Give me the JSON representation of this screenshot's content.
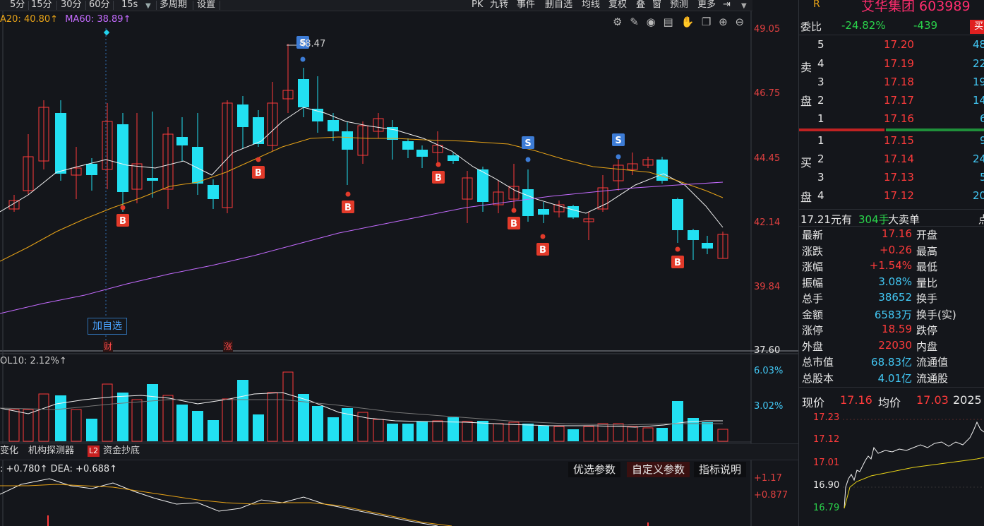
{
  "toolbar": {
    "periods": [
      "5分",
      "15分",
      "30分",
      "60分"
    ],
    "interval": "15s",
    "multi_period": "多周期",
    "settings": "设置",
    "right_items": [
      "PK",
      "九转",
      "事件",
      "删自选",
      "均线",
      "复权",
      "叠",
      "窗",
      "预测",
      "更多"
    ]
  },
  "ma": {
    "ma20": "A20: 40.80↑",
    "ma60": "MA60: 38.89↑"
  },
  "price_axis": [
    "49.05",
    "46.75",
    "44.45",
    "42.14",
    "39.84",
    "37.60"
  ],
  "peak_label": "48.47",
  "add_watch": "加自选",
  "badges": {
    "cai": "财",
    "zhang": "涨"
  },
  "vol": {
    "label": "OL10: 2.12%↑",
    "axis": [
      "6.03%",
      "3.02%"
    ]
  },
  "mid_tabs": [
    "变化",
    "机构探测器",
    "资金抄底"
  ],
  "l2": "L2",
  "macd": {
    "label": ": +0.780↑ DEA: +0.688↑",
    "axis": [
      "+1.17",
      "+0.877"
    ],
    "tabs": [
      "优选参数",
      "自定义参数",
      "指标说明"
    ]
  },
  "stock": {
    "flag": "R",
    "name": "艾华集团 603989",
    "weibi_label": "委比",
    "weibi_pct": "-24.82%",
    "weibi_val": "-439",
    "buy_btn": "买"
  },
  "asks": [
    {
      "level": "5",
      "price": "17.20",
      "vol": "48"
    },
    {
      "level": "4",
      "price": "17.19",
      "vol": "22"
    },
    {
      "level": "3",
      "price": "17.18",
      "vol": "19"
    },
    {
      "level": "2",
      "price": "17.17",
      "vol": "14"
    },
    {
      "level": "1",
      "price": "17.16",
      "vol": "6"
    }
  ],
  "bids": [
    {
      "level": "1",
      "price": "17.15",
      "vol": "9"
    },
    {
      "level": "2",
      "price": "17.14",
      "vol": "24"
    },
    {
      "level": "3",
      "price": "17.13",
      "vol": "5"
    },
    {
      "level": "4",
      "price": "17.12",
      "vol": "20"
    }
  ],
  "side_labels": {
    "sell1": "卖",
    "sell2": "盘",
    "buy1": "买",
    "buy2": "盘"
  },
  "big_order": {
    "price": "17.21元有",
    "lots": "304手",
    "text": "大卖单",
    "suffix": "点"
  },
  "quote": [
    {
      "k": "最新",
      "v": "17.16",
      "c": "red",
      "k2": "开盘"
    },
    {
      "k": "涨跌",
      "v": "+0.26",
      "c": "red",
      "k2": "最高"
    },
    {
      "k": "涨幅",
      "v": "+1.54%",
      "c": "red",
      "k2": "最低"
    },
    {
      "k": "振幅",
      "v": "3.08%",
      "c": "cyn",
      "k2": "量比"
    },
    {
      "k": "总手",
      "v": "38652",
      "c": "cyn",
      "k2": "换手"
    },
    {
      "k": "金额",
      "v": "6583万",
      "c": "cyn",
      "k2": "换手(实)"
    },
    {
      "k": "涨停",
      "v": "18.59",
      "c": "red",
      "k2": "跌停"
    },
    {
      "k": "外盘",
      "v": "22030",
      "c": "red",
      "k2": "内盘"
    },
    {
      "k": "总市值",
      "v": "68.83亿",
      "c": "cyn",
      "k2": "流通值"
    },
    {
      "k": "总股本",
      "v": "4.01亿",
      "c": "cyn",
      "k2": "流通股"
    }
  ],
  "intraday": {
    "now_label": "现价",
    "now": "17.16",
    "avg_label": "均价",
    "avg": "17.03",
    "date": "2025",
    "axis": [
      "17.23",
      "17.12",
      "17.01",
      "16.90",
      "16.79"
    ]
  }
}
